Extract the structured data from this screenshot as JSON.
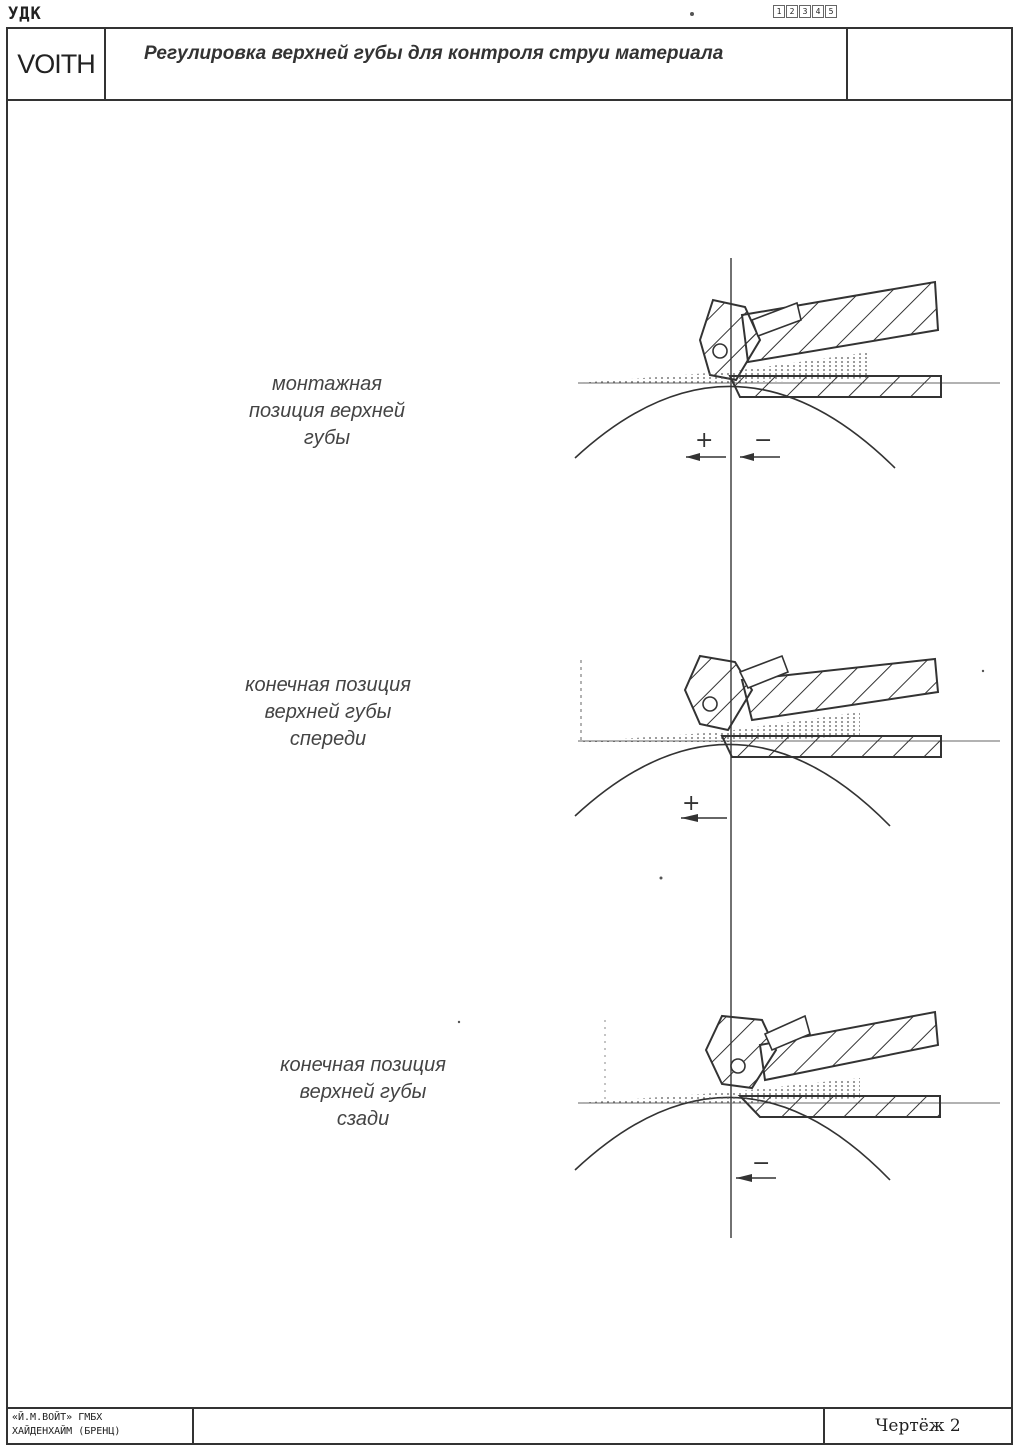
{
  "header": {
    "udk": "УДК",
    "page_marks": [
      "1",
      "2",
      "3",
      "4",
      "5"
    ],
    "logo": "VOITH",
    "title": "Регулировка верхней губы для контроля струи материала"
  },
  "figures": [
    {
      "caption": [
        "монтажная",
        "позиция верхней",
        "губы"
      ],
      "signs": [
        "+",
        "−"
      ]
    },
    {
      "caption": [
        "конечная позиция",
        "верхней губы",
        "спереди"
      ],
      "signs": [
        "+"
      ]
    },
    {
      "caption": [
        "конечная позиция",
        "верхней губы",
        "сзади"
      ],
      "signs": [
        "−"
      ]
    }
  ],
  "footer": {
    "company_line1": "«Й.М.ВОЙТ» ГМБХ",
    "company_line2": "ХАЙДЕНХАЙМ (БРЕНЦ)",
    "drawing_label": "Чертёж 2"
  }
}
